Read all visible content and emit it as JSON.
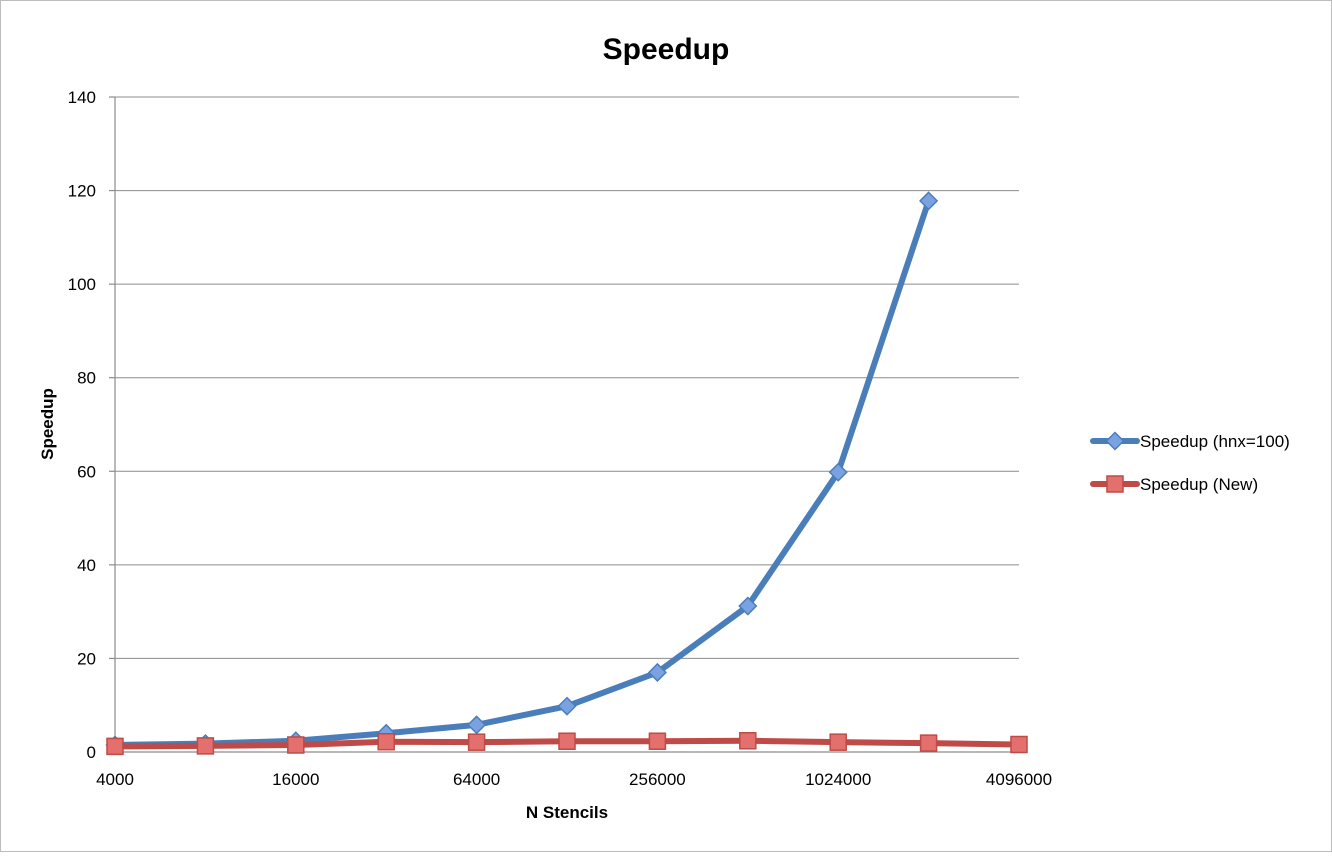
{
  "chart_data": {
    "type": "line",
    "title": "Speedup",
    "xlabel": "N Stencils",
    "ylabel": "Speedup",
    "x_scale": "log2",
    "x": [
      4000,
      8000,
      16000,
      32000,
      64000,
      128000,
      256000,
      512000,
      1024000,
      2048000,
      4096000
    ],
    "x_tick_labels": [
      "4000",
      "16000",
      "64000",
      "256000",
      "1024000",
      "4096000"
    ],
    "x_tick_values": [
      4000,
      16000,
      64000,
      256000,
      1024000,
      4096000
    ],
    "ylim": [
      0,
      140
    ],
    "y_ticks": [
      0,
      20,
      40,
      60,
      80,
      100,
      120,
      140
    ],
    "grid": "horizontal",
    "legend_position": "right",
    "series": [
      {
        "name": "Speedup (hnx=100)",
        "color": "#4a7ebb",
        "marker_fill": "#7aa2e0",
        "marker": "diamond",
        "values": [
          1.5,
          1.8,
          2.4,
          4.0,
          5.8,
          9.8,
          17.0,
          31.2,
          59.8,
          117.8,
          null
        ]
      },
      {
        "name": "Speedup (New)",
        "color": "#be4b48",
        "marker_fill": "#e3706c",
        "marker": "square",
        "values": [
          1.2,
          1.3,
          1.5,
          2.2,
          2.1,
          2.3,
          2.3,
          2.4,
          2.1,
          1.9,
          1.6
        ]
      }
    ]
  }
}
